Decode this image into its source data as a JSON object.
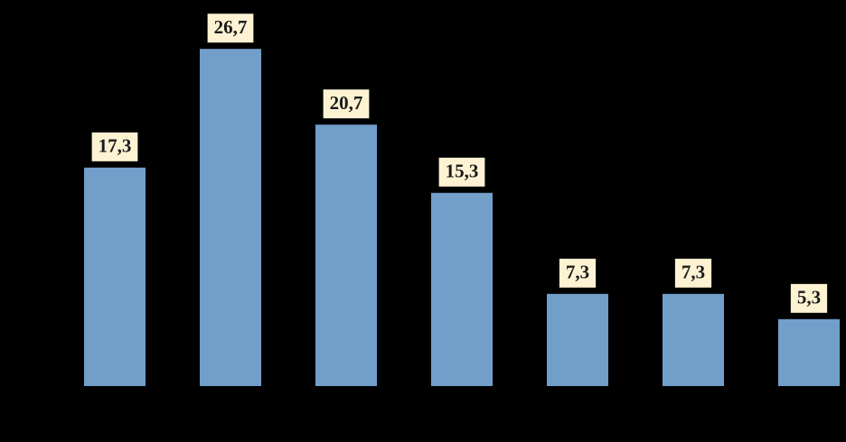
{
  "chart_data": {
    "type": "bar",
    "categories": [
      null,
      null,
      null,
      null,
      null,
      null,
      null
    ],
    "values": [
      17.3,
      26.7,
      20.7,
      15.3,
      7.3,
      7.3,
      5.3
    ],
    "value_labels": [
      "17,3",
      "26,7",
      "20,7",
      "15,3",
      "7,3",
      "7,3",
      "5,3"
    ],
    "color": "#729fca",
    "ylim": [
      0,
      30
    ]
  }
}
